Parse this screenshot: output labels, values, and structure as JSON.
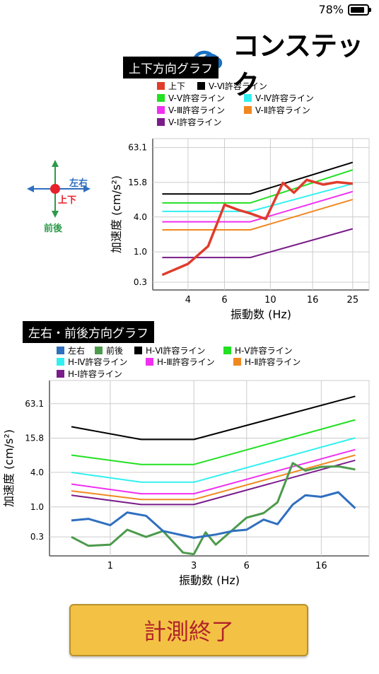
{
  "status": {
    "battery_percent": "78%"
  },
  "brand": {
    "name": "コンステック",
    "logo_color": "#1a6fc0"
  },
  "compass": {
    "label_top": "左右",
    "label_center": "上下",
    "label_bottom": "前後"
  },
  "vertical": {
    "title": "上下方向グラフ",
    "legend": [
      {
        "label": "上下",
        "color": "#e03c2c"
      },
      {
        "label": "V-Ⅵ許容ライン",
        "color": "#000000"
      },
      {
        "label": "V-Ⅴ許容ライン",
        "color": "#22e022"
      },
      {
        "label": "V-Ⅳ許容ライン",
        "color": "#33f0f0"
      },
      {
        "label": "V-Ⅲ許容ライン",
        "color": "#f030f0"
      },
      {
        "label": "V-Ⅱ許容ライン",
        "color": "#f08820"
      },
      {
        "label": "V-Ⅰ許容ライン",
        "color": "#7a1c8a"
      }
    ]
  },
  "horizontal": {
    "title": "左右・前後方向グラフ",
    "legend": [
      {
        "label": "左右",
        "color": "#2f6fbf"
      },
      {
        "label": "前後",
        "color": "#4c9a4c"
      },
      {
        "label": "H-Ⅵ許容ライン",
        "color": "#000000"
      },
      {
        "label": "H-Ⅴ許容ライン",
        "color": "#22e022"
      },
      {
        "label": "H-Ⅳ許容ライン",
        "color": "#33f0f0"
      },
      {
        "label": "H-Ⅲ許容ライン",
        "color": "#f030f0"
      },
      {
        "label": "H-Ⅱ許容ライン",
        "color": "#f08820"
      },
      {
        "label": "H-Ⅰ許容ライン",
        "color": "#7a1c8a"
      }
    ]
  },
  "chart_data": [
    {
      "type": "line",
      "title": "上下方向グラフ",
      "xlabel": "振動数 (Hz)",
      "ylabel": "加速度 (cm/s²)",
      "x_scale": "log",
      "y_scale": "log",
      "xlim": [
        2.7,
        30
      ],
      "ylim": [
        0.22,
        90
      ],
      "x_ticks": [
        "4",
        "6",
        "10",
        "16",
        "25"
      ],
      "x_tick_values": [
        4,
        6,
        10,
        16,
        25
      ],
      "y_ticks": [
        "63.1",
        "15.8",
        "4.0",
        "1.0",
        "0.3"
      ],
      "y_tick_values": [
        63.1,
        15.8,
        4.0,
        1.0,
        0.3
      ],
      "grid": true,
      "series": [
        {
          "name": "上下",
          "color": "#e03c2c",
          "width": 3.5,
          "x": [
            3,
            4,
            5,
            6,
            7,
            8,
            9.5,
            11.5,
            13,
            15,
            18,
            21,
            25
          ],
          "y": [
            0.4,
            0.62,
            1.25,
            6.5,
            5.3,
            4.6,
            3.7,
            15.5,
            10.5,
            17.5,
            14.5,
            16.0,
            15.0
          ]
        },
        {
          "name": "V-Ⅵ許容ライン",
          "color": "#000000",
          "width": 2,
          "x": [
            3,
            8,
            25
          ],
          "y": [
            10,
            10,
            35
          ]
        },
        {
          "name": "V-Ⅴ許容ライン",
          "color": "#22e022",
          "width": 2,
          "x": [
            3,
            8,
            25
          ],
          "y": [
            7,
            7,
            26
          ]
        },
        {
          "name": "V-Ⅳ許容ライン",
          "color": "#33f0f0",
          "width": 2,
          "x": [
            3,
            8,
            25
          ],
          "y": [
            5,
            5,
            15
          ]
        },
        {
          "name": "V-Ⅲ許容ライン",
          "color": "#f030f0",
          "width": 2,
          "x": [
            3,
            8,
            25
          ],
          "y": [
            3.3,
            3.3,
            11
          ]
        },
        {
          "name": "V-Ⅱ許容ライン",
          "color": "#f08820",
          "width": 2,
          "x": [
            3,
            8,
            25
          ],
          "y": [
            2.4,
            2.4,
            8
          ]
        },
        {
          "name": "V-Ⅰ許容ライン",
          "color": "#7a1c8a",
          "width": 2,
          "x": [
            3,
            8,
            25
          ],
          "y": [
            0.8,
            0.8,
            2.5
          ]
        }
      ]
    },
    {
      "type": "line",
      "title": "左右・前後方向グラフ",
      "xlabel": "振動数 (Hz)",
      "ylabel": "加速度 (cm/s²)",
      "x_scale": "log",
      "y_scale": "log",
      "xlim": [
        0.45,
        30
      ],
      "ylim": [
        0.14,
        160
      ],
      "x_ticks": [
        "1",
        "3",
        "6",
        "16"
      ],
      "x_tick_values": [
        1,
        3,
        6,
        16
      ],
      "y_ticks": [
        "63.1",
        "15.8",
        "4.0",
        "1.0",
        "0.3"
      ],
      "y_tick_values": [
        63.1,
        15.8,
        4.0,
        1.0,
        0.3
      ],
      "grid": true,
      "series": [
        {
          "name": "左右",
          "color": "#2f6fbf",
          "width": 3,
          "x": [
            0.6,
            0.75,
            1.0,
            1.25,
            1.6,
            2.0,
            3.0,
            4.0,
            5.0,
            6.0,
            7.5,
            9.0,
            11,
            13,
            16,
            20,
            25
          ],
          "y": [
            0.58,
            0.62,
            0.48,
            0.8,
            0.7,
            0.38,
            0.29,
            0.33,
            0.38,
            0.4,
            0.6,
            0.5,
            1.1,
            1.6,
            1.5,
            1.8,
            0.95
          ]
        },
        {
          "name": "前後",
          "color": "#4c9a4c",
          "width": 3,
          "x": [
            0.6,
            0.75,
            1.0,
            1.25,
            1.6,
            2.0,
            2.6,
            3.0,
            3.5,
            4.0,
            5.0,
            6.0,
            7.5,
            9.0,
            11,
            13,
            16,
            20,
            25
          ],
          "y": [
            0.3,
            0.21,
            0.22,
            0.4,
            0.3,
            0.38,
            0.16,
            0.15,
            0.36,
            0.22,
            0.4,
            0.65,
            0.78,
            1.2,
            5.8,
            4.3,
            5.0,
            5.1,
            4.5
          ]
        },
        {
          "name": "H-Ⅵ許容ライン",
          "color": "#000000",
          "width": 2,
          "x": [
            0.6,
            1.5,
            3,
            25
          ],
          "y": [
            25,
            15,
            15,
            85
          ]
        },
        {
          "name": "H-Ⅴ許容ライン",
          "color": "#22e022",
          "width": 2,
          "x": [
            0.6,
            1.5,
            3,
            25
          ],
          "y": [
            8,
            5.5,
            5.5,
            33
          ]
        },
        {
          "name": "H-Ⅳ許容ライン",
          "color": "#33f0f0",
          "width": 2,
          "x": [
            0.6,
            1.5,
            3,
            25
          ],
          "y": [
            4.0,
            2.7,
            2.7,
            16
          ]
        },
        {
          "name": "H-Ⅲ許容ライン",
          "color": "#f030f0",
          "width": 2,
          "x": [
            0.6,
            1.5,
            3,
            25
          ],
          "y": [
            2.5,
            1.7,
            1.7,
            10
          ]
        },
        {
          "name": "H-Ⅱ許容ライン",
          "color": "#f08820",
          "width": 2,
          "x": [
            0.6,
            1.5,
            3,
            25
          ],
          "y": [
            1.9,
            1.35,
            1.35,
            8
          ]
        },
        {
          "name": "H-Ⅰ許容ライン",
          "color": "#7a1c8a",
          "width": 2,
          "x": [
            0.6,
            1.5,
            3,
            25
          ],
          "y": [
            1.6,
            1.1,
            1.1,
            6.5
          ]
        }
      ]
    }
  ],
  "finish_button": {
    "label": "計測終了"
  }
}
